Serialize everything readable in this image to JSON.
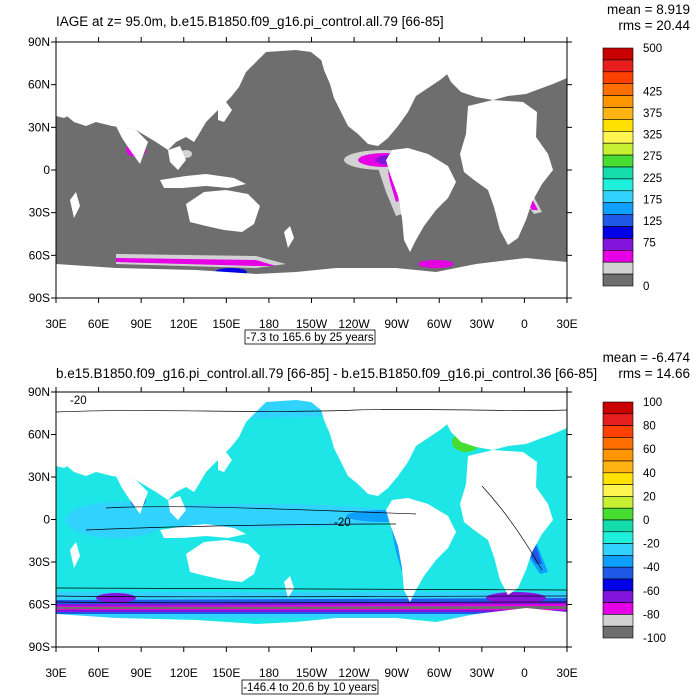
{
  "colors": {
    "land": "#ffffff",
    "panel1_ocean": "#6e6e6e",
    "panel2_ocean": "#1ee6e6"
  },
  "panels": [
    {
      "title": "IAGE at z=  95.0m, b.e15.B1850.f09_g16.pi_control.all.79 [66-85]",
      "mean": "mean = 8.919",
      "rms": "rms = 20.44",
      "range_label": "-7.3 to 165.6 by 25 years",
      "lat_labels": [
        "90N",
        "60N",
        "30N",
        "0",
        "30S",
        "60S",
        "90S"
      ],
      "lon_labels": [
        "30E",
        "60E",
        "90E",
        "120E",
        "150E",
        "180",
        "150W",
        "120W",
        "90W",
        "60W",
        "30W",
        "0",
        "30E"
      ],
      "colorbar_colors": [
        "#c80000",
        "#e61e1e",
        "#ff4100",
        "#ff6e00",
        "#ff9600",
        "#ffb414",
        "#ffe100",
        "#fff550",
        "#c8f032",
        "#46dc32",
        "#14dcaa",
        "#1ef0dc",
        "#32d2ff",
        "#0fa0ff",
        "#1e5ae6",
        "#0000e6",
        "#8214dc",
        "#e600e6",
        "#d2d2d2",
        "#6e6e6e"
      ],
      "colorbar_labels": [
        "500",
        "",
        "425",
        "375",
        "325",
        "275",
        "225",
        "175",
        "125",
        "75",
        "",
        "0"
      ]
    },
    {
      "title": "b.e15.B1850.f09_g16.pi_control.all.79 [66-85] - b.e15.B1850.f09_g16.pi_control.36 [66-85]",
      "mean": "mean = -6.474",
      "rms": "rms = 14.66",
      "range_label": "-146.4 to 20.6 by 10 years",
      "lat_labels": [
        "90N",
        "60N",
        "30N",
        "0",
        "30S",
        "60S",
        "90S"
      ],
      "lon_labels": [
        "30E",
        "60E",
        "90E",
        "120E",
        "150E",
        "180",
        "150W",
        "120W",
        "90W",
        "60W",
        "30W",
        "0",
        "30E"
      ],
      "colorbar_colors": [
        "#c80000",
        "#e61e1e",
        "#ff4100",
        "#ff6e00",
        "#ff9600",
        "#ffb414",
        "#ffe100",
        "#fff550",
        "#c8f032",
        "#46dc32",
        "#14dcaa",
        "#1ef0dc",
        "#32d2ff",
        "#0fa0ff",
        "#1e5ae6",
        "#0000e6",
        "#8214dc",
        "#e600e6",
        "#d2d2d2",
        "#6e6e6e"
      ],
      "colorbar_labels": [
        "100",
        "80",
        "60",
        "40",
        "20",
        "0",
        "-20",
        "-40",
        "-60",
        "-80",
        "-100"
      ],
      "contour_labels": [
        "-20",
        "-20"
      ]
    }
  ]
}
